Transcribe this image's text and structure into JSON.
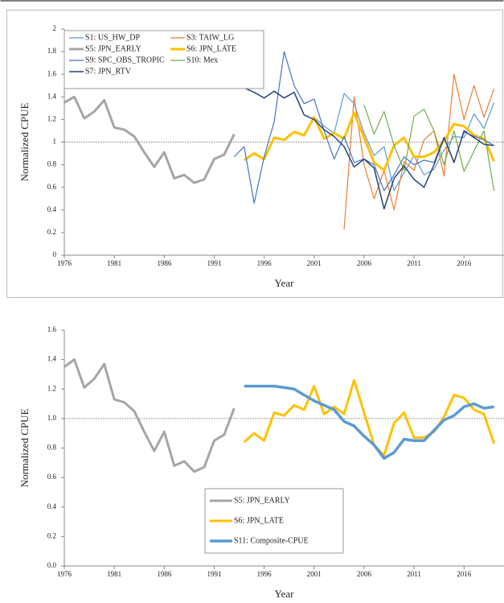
{
  "chart_data": [
    {
      "type": "line",
      "x_label": "Year",
      "y_label": "Normalized CPUE",
      "x": [
        1976,
        1977,
        1978,
        1979,
        1980,
        1981,
        1982,
        1983,
        1984,
        1985,
        1986,
        1987,
        1988,
        1989,
        1990,
        1991,
        1992,
        1993,
        1994,
        1995,
        1996,
        1997,
        1998,
        1999,
        2000,
        2001,
        2002,
        2003,
        2004,
        2005,
        2006,
        2007,
        2008,
        2009,
        2010,
        2011,
        2012,
        2013,
        2014,
        2015,
        2016,
        2017,
        2018,
        2019
      ],
      "xlim": [
        1976,
        2020
      ],
      "xticks": [
        1976,
        1981,
        1986,
        1991,
        1996,
        2001,
        2006,
        2011,
        2016
      ],
      "ylim": [
        0,
        2
      ],
      "yticks": [
        0,
        0.2,
        0.4,
        0.6,
        0.8,
        1,
        1.2,
        1.4,
        1.6,
        1.8,
        2
      ],
      "reference_line": 1,
      "series": [
        {
          "name": "S1: US_HW_DP",
          "color": "#5b9bd5",
          "line_width": 1.2,
          "values": [
            null,
            null,
            null,
            null,
            null,
            null,
            null,
            null,
            null,
            null,
            null,
            null,
            null,
            null,
            null,
            null,
            null,
            null,
            null,
            null,
            null,
            null,
            null,
            null,
            null,
            1.22,
            1.14,
            1.08,
            1.43,
            1.34,
            1.08,
            0.88,
            0.96,
            0.57,
            0.73,
            0.88,
            0.71,
            0.76,
            0.93,
            1.05,
            1.04,
            1.25,
            1.12,
            1.35
          ]
        },
        {
          "name": "S3: TAIW_LG",
          "color": "#ed7d31",
          "line_width": 1.2,
          "values": [
            null,
            null,
            null,
            null,
            null,
            null,
            null,
            null,
            null,
            null,
            null,
            null,
            null,
            null,
            null,
            null,
            null,
            null,
            null,
            null,
            null,
            null,
            null,
            null,
            null,
            null,
            null,
            null,
            0.23,
            1.4,
            0.8,
            0.5,
            0.75,
            0.4,
            0.83,
            0.75,
            1.02,
            1.1,
            0.7,
            1.6,
            1.2,
            1.5,
            1.22,
            1.47
          ]
        },
        {
          "name": "S5: JPN_EARLY",
          "color": "#a5a5a5",
          "line_width": 3,
          "values": [
            1.35,
            1.4,
            1.21,
            1.27,
            1.37,
            1.13,
            1.11,
            1.05,
            0.91,
            0.78,
            0.91,
            0.68,
            0.71,
            0.64,
            0.67,
            0.85,
            0.89,
            1.07,
            null,
            null,
            null,
            null,
            null,
            null,
            null,
            null,
            null,
            null,
            null,
            null,
            null,
            null,
            null,
            null,
            null,
            null,
            null,
            null,
            null,
            null,
            null,
            null,
            null,
            null
          ]
        },
        {
          "name": "S6: JPN_LATE",
          "color": "#ffc000",
          "line_width": 3,
          "values": [
            null,
            null,
            null,
            null,
            null,
            null,
            null,
            null,
            null,
            null,
            null,
            null,
            null,
            null,
            null,
            null,
            null,
            null,
            0.84,
            0.9,
            0.85,
            1.04,
            1.02,
            1.09,
            1.06,
            1.22,
            1.03,
            1.08,
            1.03,
            1.26,
            1.04,
            0.82,
            0.75,
            0.97,
            1.04,
            0.87,
            0.87,
            0.91,
            1.01,
            1.16,
            1.14,
            1.06,
            1.03,
            0.83
          ]
        },
        {
          "name": "S9: SPC_OBS_TROPIC",
          "color": "#4472c4",
          "line_width": 1.2,
          "values": [
            null,
            null,
            null,
            null,
            null,
            null,
            null,
            null,
            null,
            null,
            null,
            null,
            null,
            null,
            null,
            null,
            null,
            0.87,
            0.96,
            0.46,
            0.87,
            1.18,
            1.8,
            1.5,
            1.34,
            1.38,
            1.1,
            0.85,
            1.05,
            0.82,
            0.85,
            0.8,
            0.57,
            0.71,
            0.87,
            0.8,
            0.84,
            0.82,
            1.04,
            0.82,
            1.09,
            1.05,
            1.02,
            0.97
          ]
        },
        {
          "name": "S10: Mex",
          "color": "#70ad47",
          "line_width": 1.2,
          "values": [
            null,
            null,
            null,
            null,
            null,
            null,
            null,
            null,
            null,
            null,
            null,
            null,
            null,
            null,
            null,
            null,
            null,
            null,
            null,
            null,
            null,
            null,
            null,
            null,
            null,
            null,
            null,
            null,
            null,
            null,
            1.33,
            1.07,
            1.27,
            0.97,
            0.75,
            1.23,
            1.29,
            1.1,
            0.8,
            1.1,
            0.74,
            0.92,
            1.1,
            0.57
          ]
        },
        {
          "name": "S7: JPN_RTV",
          "color": "#264478",
          "line_width": 1.5,
          "values": [
            null,
            null,
            null,
            null,
            null,
            null,
            null,
            null,
            null,
            null,
            null,
            null,
            null,
            null,
            null,
            null,
            null,
            null,
            1.48,
            1.44,
            1.39,
            1.45,
            1.39,
            1.44,
            1.24,
            1.2,
            1.11,
            1.05,
            0.96,
            0.78,
            0.85,
            0.77,
            0.41,
            0.68,
            0.79,
            0.67,
            0.6,
            0.8,
            1.04,
            0.82,
            1.1,
            1.04,
            0.98,
            0.97
          ]
        }
      ]
    },
    {
      "type": "line",
      "x_label": "Year",
      "y_label": "Normalized CPUE",
      "x": [
        1976,
        1977,
        1978,
        1979,
        1980,
        1981,
        1982,
        1983,
        1984,
        1985,
        1986,
        1987,
        1988,
        1989,
        1990,
        1991,
        1992,
        1993,
        1994,
        1995,
        1996,
        1997,
        1998,
        1999,
        2000,
        2001,
        2002,
        2003,
        2004,
        2005,
        2006,
        2007,
        2008,
        2009,
        2010,
        2011,
        2012,
        2013,
        2014,
        2015,
        2016,
        2017,
        2018,
        2019
      ],
      "xlim": [
        1976,
        2020
      ],
      "xticks": [
        1976,
        1981,
        1986,
        1991,
        1996,
        2001,
        2006,
        2011,
        2016
      ],
      "ylim": [
        0,
        1.6
      ],
      "yticks": [
        {
          "value": 0,
          "label": "0.0"
        },
        0.2,
        0.4,
        0.6,
        0.8,
        {
          "value": 1,
          "label": "1.0"
        },
        1.2,
        1.4,
        1.6
      ],
      "reference_line": 1,
      "series": [
        {
          "name": "S5: JPN_EARLY",
          "color": "#a5a5a5",
          "line_width": 3,
          "values": [
            1.35,
            1.4,
            1.21,
            1.27,
            1.37,
            1.13,
            1.11,
            1.05,
            0.91,
            0.78,
            0.91,
            0.68,
            0.71,
            0.64,
            0.67,
            0.85,
            0.89,
            1.07,
            null,
            null,
            null,
            null,
            null,
            null,
            null,
            null,
            null,
            null,
            null,
            null,
            null,
            null,
            null,
            null,
            null,
            null,
            null,
            null,
            null,
            null,
            null,
            null,
            null,
            null
          ]
        },
        {
          "name": "S6: JPN_LATE",
          "color": "#ffc000",
          "line_width": 3,
          "values": [
            null,
            null,
            null,
            null,
            null,
            null,
            null,
            null,
            null,
            null,
            null,
            null,
            null,
            null,
            null,
            null,
            null,
            null,
            0.84,
            0.9,
            0.85,
            1.04,
            1.02,
            1.09,
            1.06,
            1.22,
            1.03,
            1.08,
            1.03,
            1.26,
            1.04,
            0.82,
            0.75,
            0.97,
            1.04,
            0.87,
            0.87,
            0.91,
            1.01,
            1.16,
            1.14,
            1.06,
            1.03,
            0.83
          ]
        },
        {
          "name": "S11: Composite-CPUE",
          "color": "#5b9bd5",
          "line_width": 3.5,
          "values": [
            null,
            null,
            null,
            null,
            null,
            null,
            null,
            null,
            null,
            null,
            null,
            null,
            null,
            null,
            null,
            null,
            null,
            null,
            1.22,
            1.22,
            1.22,
            1.22,
            1.21,
            1.2,
            1.16,
            1.12,
            1.09,
            1.06,
            0.98,
            0.95,
            0.88,
            0.82,
            0.73,
            0.77,
            0.86,
            0.85,
            0.85,
            0.92,
            0.99,
            1.02,
            1.08,
            1.1,
            1.07,
            1.08
          ]
        }
      ]
    }
  ]
}
